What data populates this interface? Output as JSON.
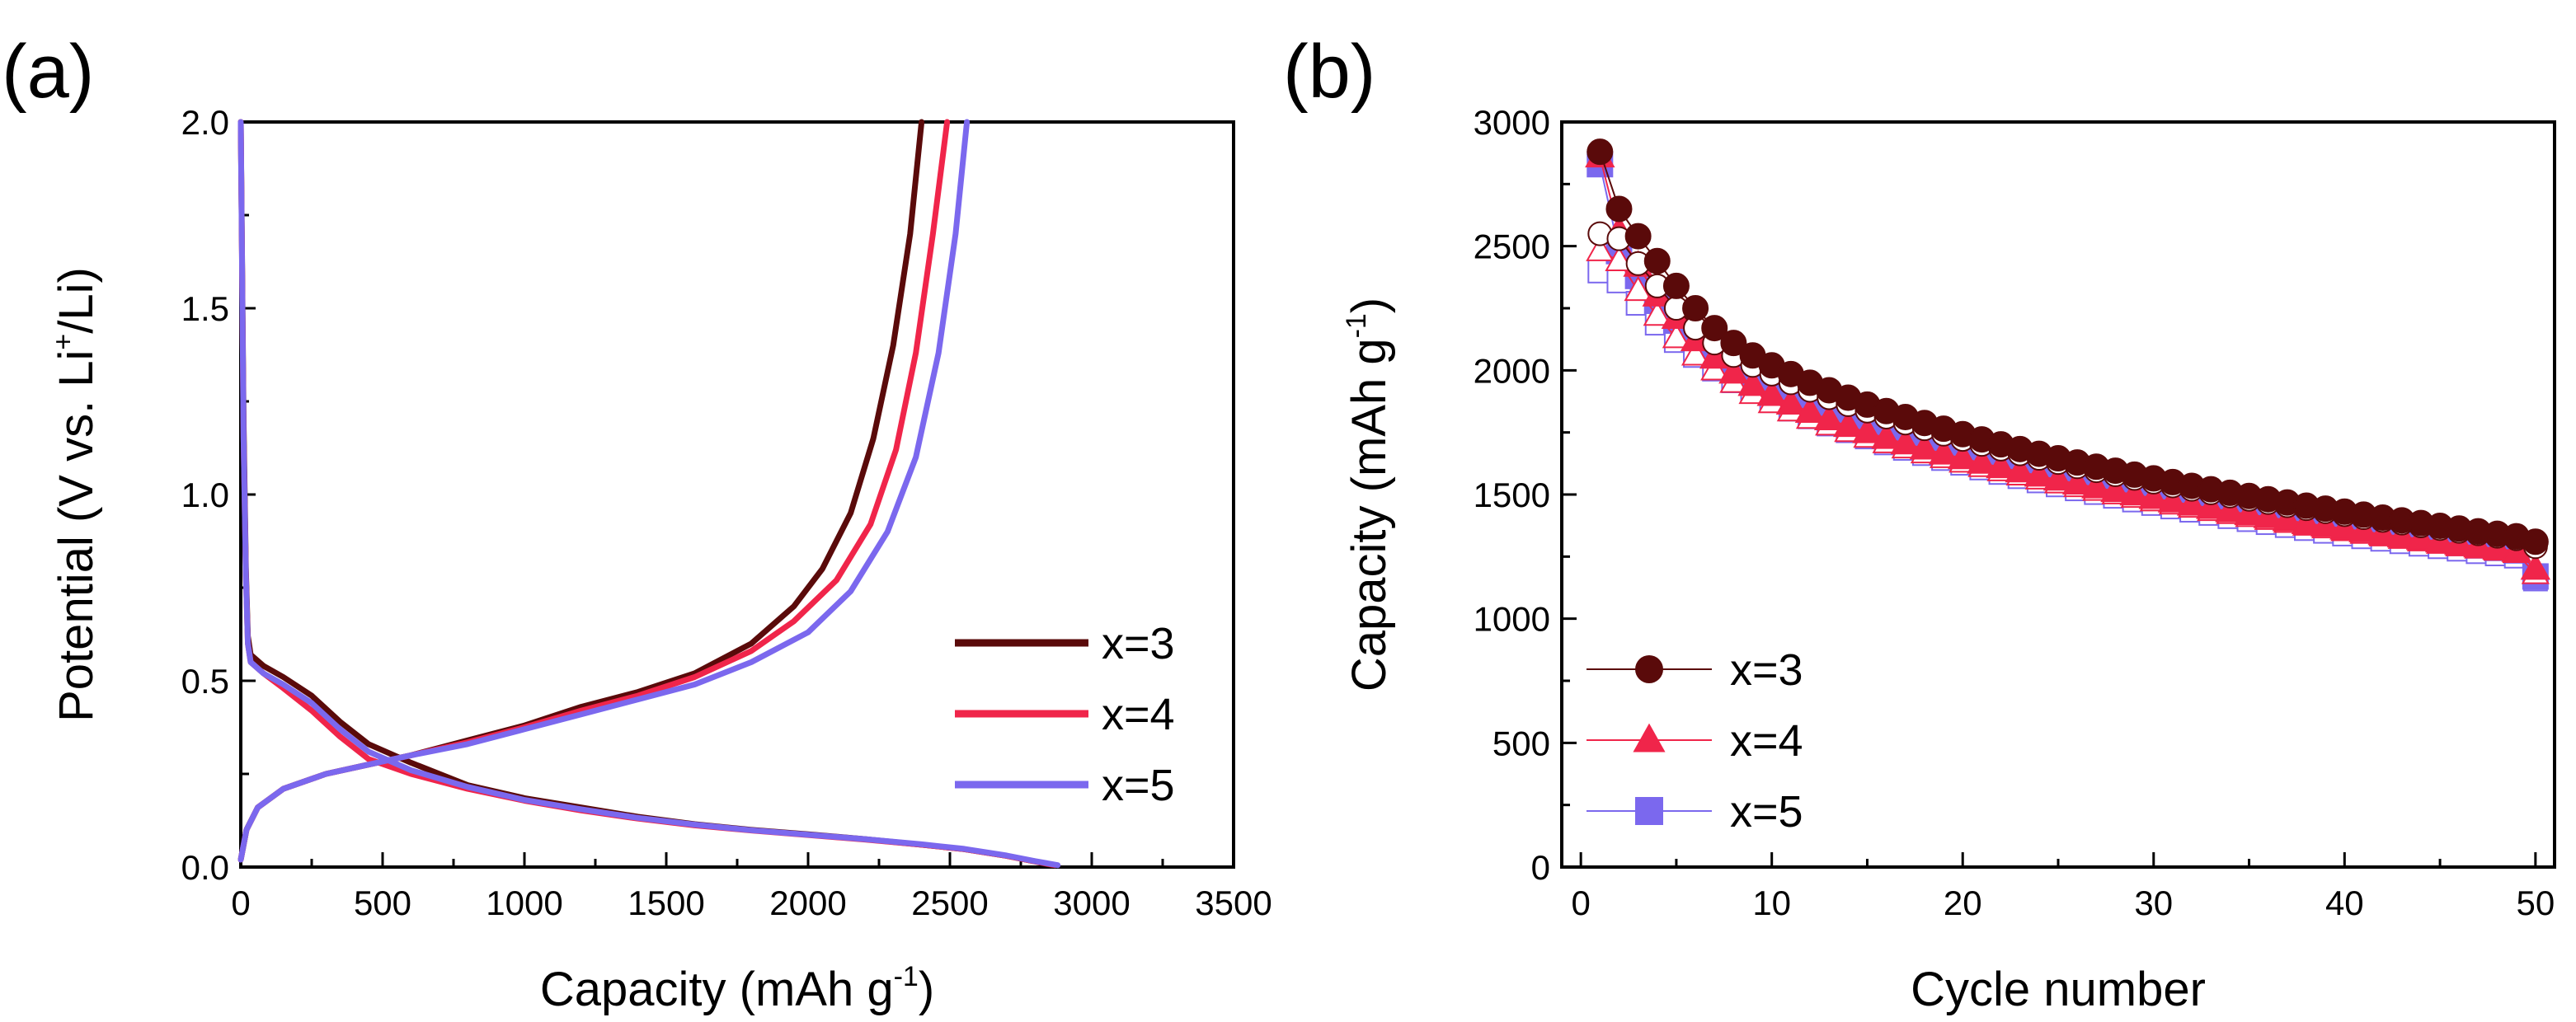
{
  "chart_data": [
    {
      "panel": "(a)",
      "type": "line",
      "title": "",
      "xlabel": {
        "main": "Capacity (mAh g",
        "sup": "-1",
        "tail": ")"
      },
      "ylabel": {
        "main": "Potential (V vs. Li",
        "sup": "+",
        "tail": "/Li)"
      },
      "xlim": [
        0,
        3500
      ],
      "ylim": [
        0,
        2.0
      ],
      "xticks": [
        0,
        500,
        1000,
        1500,
        2000,
        2500,
        3000,
        3500
      ],
      "xtick_labels": [
        "0",
        "500",
        "1000",
        "1500",
        "2000",
        "2500",
        "3000",
        "3500"
      ],
      "yticks": [
        0,
        0.5,
        1.0,
        1.5,
        2.0
      ],
      "ytick_labels": [
        "0.0",
        "0.5",
        "1.0",
        "1.5",
        "2.0"
      ],
      "legend": {
        "position": "right-middle",
        "entries": [
          "x=3",
          "x=4",
          "x=5"
        ]
      },
      "series": [
        {
          "name": "x=3",
          "color": "#5a0a0a",
          "discharge": [
            [
              0,
              2.0
            ],
            [
              10,
              1.2
            ],
            [
              18,
              0.8
            ],
            [
              25,
              0.62
            ],
            [
              35,
              0.57
            ],
            [
              80,
              0.54
            ],
            [
              150,
              0.51
            ],
            [
              250,
              0.46
            ],
            [
              350,
              0.39
            ],
            [
              450,
              0.33
            ],
            [
              600,
              0.28
            ],
            [
              800,
              0.22
            ],
            [
              1000,
              0.185
            ],
            [
              1200,
              0.16
            ],
            [
              1400,
              0.135
            ],
            [
              1600,
              0.115
            ],
            [
              1800,
              0.1
            ],
            [
              2000,
              0.088
            ],
            [
              2200,
              0.075
            ],
            [
              2400,
              0.06
            ],
            [
              2550,
              0.048
            ],
            [
              2700,
              0.03
            ],
            [
              2800,
              0.015
            ],
            [
              2860,
              0.005
            ]
          ],
          "charge": [
            [
              0,
              0.02
            ],
            [
              20,
              0.1
            ],
            [
              60,
              0.16
            ],
            [
              150,
              0.21
            ],
            [
              300,
              0.25
            ],
            [
              450,
              0.275
            ],
            [
              600,
              0.3
            ],
            [
              800,
              0.34
            ],
            [
              1000,
              0.38
            ],
            [
              1200,
              0.43
            ],
            [
              1400,
              0.47
            ],
            [
              1600,
              0.52
            ],
            [
              1800,
              0.6
            ],
            [
              1950,
              0.7
            ],
            [
              2050,
              0.8
            ],
            [
              2150,
              0.95
            ],
            [
              2230,
              1.15
            ],
            [
              2300,
              1.4
            ],
            [
              2360,
              1.7
            ],
            [
              2400,
              2.0
            ]
          ]
        },
        {
          "name": "x=4",
          "color": "#f0254a",
          "discharge": [
            [
              0,
              2.0
            ],
            [
              10,
              1.15
            ],
            [
              18,
              0.78
            ],
            [
              25,
              0.6
            ],
            [
              35,
              0.55
            ],
            [
              80,
              0.52
            ],
            [
              150,
              0.48
            ],
            [
              250,
              0.42
            ],
            [
              350,
              0.35
            ],
            [
              450,
              0.29
            ],
            [
              600,
              0.25
            ],
            [
              800,
              0.21
            ],
            [
              1000,
              0.178
            ],
            [
              1200,
              0.152
            ],
            [
              1400,
              0.13
            ],
            [
              1600,
              0.112
            ],
            [
              1800,
              0.098
            ],
            [
              2000,
              0.086
            ],
            [
              2200,
              0.074
            ],
            [
              2400,
              0.06
            ],
            [
              2550,
              0.048
            ],
            [
              2700,
              0.03
            ],
            [
              2800,
              0.015
            ],
            [
              2870,
              0.005
            ]
          ],
          "charge": [
            [
              0,
              0.02
            ],
            [
              20,
              0.1
            ],
            [
              60,
              0.16
            ],
            [
              150,
              0.21
            ],
            [
              300,
              0.25
            ],
            [
              450,
              0.275
            ],
            [
              600,
              0.3
            ],
            [
              800,
              0.335
            ],
            [
              1000,
              0.375
            ],
            [
              1200,
              0.42
            ],
            [
              1400,
              0.46
            ],
            [
              1600,
              0.51
            ],
            [
              1800,
              0.58
            ],
            [
              1950,
              0.66
            ],
            [
              2100,
              0.77
            ],
            [
              2220,
              0.92
            ],
            [
              2310,
              1.12
            ],
            [
              2380,
              1.38
            ],
            [
              2440,
              1.7
            ],
            [
              2490,
              2.0
            ]
          ]
        },
        {
          "name": "x=5",
          "color": "#7b68ee",
          "discharge": [
            [
              0,
              2.0
            ],
            [
              10,
              1.15
            ],
            [
              18,
              0.78
            ],
            [
              25,
              0.6
            ],
            [
              35,
              0.55
            ],
            [
              80,
              0.52
            ],
            [
              150,
              0.49
            ],
            [
              250,
              0.44
            ],
            [
              350,
              0.37
            ],
            [
              450,
              0.31
            ],
            [
              600,
              0.26
            ],
            [
              800,
              0.215
            ],
            [
              1000,
              0.18
            ],
            [
              1200,
              0.155
            ],
            [
              1400,
              0.132
            ],
            [
              1600,
              0.114
            ],
            [
              1800,
              0.099
            ],
            [
              2000,
              0.087
            ],
            [
              2200,
              0.075
            ],
            [
              2400,
              0.061
            ],
            [
              2550,
              0.049
            ],
            [
              2700,
              0.031
            ],
            [
              2800,
              0.016
            ],
            [
              2880,
              0.005
            ]
          ],
          "charge": [
            [
              0,
              0.02
            ],
            [
              20,
              0.1
            ],
            [
              60,
              0.16
            ],
            [
              150,
              0.21
            ],
            [
              300,
              0.25
            ],
            [
              450,
              0.275
            ],
            [
              600,
              0.3
            ],
            [
              800,
              0.33
            ],
            [
              1000,
              0.37
            ],
            [
              1200,
              0.41
            ],
            [
              1400,
              0.45
            ],
            [
              1600,
              0.49
            ],
            [
              1800,
              0.55
            ],
            [
              2000,
              0.63
            ],
            [
              2150,
              0.74
            ],
            [
              2280,
              0.9
            ],
            [
              2380,
              1.1
            ],
            [
              2460,
              1.38
            ],
            [
              2520,
              1.7
            ],
            [
              2560,
              2.0
            ]
          ]
        }
      ]
    },
    {
      "panel": "(b)",
      "type": "scatter",
      "title": "",
      "xlabel": {
        "main": "Cycle number",
        "sup": "",
        "tail": ""
      },
      "ylabel": {
        "main": "Capacity (mAh g",
        "sup": "-1",
        "tail": ")"
      },
      "xlim": [
        -1,
        51
      ],
      "ylim": [
        0,
        3000
      ],
      "xticks": [
        0,
        10,
        20,
        30,
        40,
        50
      ],
      "xtick_labels": [
        "0",
        "10",
        "20",
        "30",
        "40",
        "50"
      ],
      "yticks": [
        0,
        500,
        1000,
        1500,
        2000,
        2500,
        3000
      ],
      "ytick_labels": [
        "0",
        "500",
        "1000",
        "1500",
        "2000",
        "2500",
        "3000"
      ],
      "legend": {
        "position": "bottom-left",
        "entries": [
          "x=3",
          "x=4",
          "x=5"
        ]
      },
      "series": [
        {
          "name": "x=3",
          "color": "#5a0a0a",
          "marker": "circle",
          "discharge": [
            2880,
            2650,
            2540,
            2440,
            2340,
            2250,
            2170,
            2110,
            2060,
            2020,
            1985,
            1950,
            1920,
            1890,
            1862,
            1836,
            1812,
            1788,
            1765,
            1743,
            1722,
            1702,
            1683,
            1664,
            1646,
            1629,
            1612,
            1596,
            1580,
            1565,
            1550,
            1535,
            1521,
            1507,
            1494,
            1481,
            1468,
            1455,
            1443,
            1431,
            1419,
            1407,
            1396,
            1385,
            1374,
            1363,
            1352,
            1342,
            1332,
            1310
          ],
          "charge": [
            2550,
            2530,
            2430,
            2340,
            2250,
            2170,
            2110,
            2060,
            2020,
            1985,
            1950,
            1920,
            1890,
            1862,
            1836,
            1812,
            1788,
            1765,
            1743,
            1722,
            1702,
            1683,
            1664,
            1646,
            1629,
            1612,
            1596,
            1580,
            1565,
            1550,
            1535,
            1521,
            1507,
            1494,
            1481,
            1468,
            1455,
            1443,
            1431,
            1419,
            1407,
            1396,
            1385,
            1374,
            1363,
            1352,
            1342,
            1332,
            1322,
            1290
          ]
        },
        {
          "name": "x=4",
          "color": "#f0254a",
          "marker": "triangle",
          "discharge": [
            2860,
            2560,
            2420,
            2300,
            2210,
            2120,
            2050,
            1990,
            1940,
            1900,
            1865,
            1832,
            1802,
            1775,
            1750,
            1727,
            1705,
            1684,
            1664,
            1645,
            1627,
            1609,
            1592,
            1575,
            1559,
            1543,
            1528,
            1513,
            1499,
            1485,
            1471,
            1458,
            1445,
            1432,
            1420,
            1408,
            1396,
            1384,
            1373,
            1362,
            1351,
            1340,
            1330,
            1320,
            1310,
            1300,
            1290,
            1281,
            1272,
            1200
          ],
          "charge": [
            2480,
            2440,
            2320,
            2220,
            2130,
            2060,
            2000,
            1950,
            1905,
            1868,
            1835,
            1805,
            1778,
            1752,
            1729,
            1707,
            1686,
            1666,
            1647,
            1629,
            1611,
            1594,
            1577,
            1561,
            1545,
            1530,
            1515,
            1501,
            1487,
            1473,
            1460,
            1447,
            1434,
            1422,
            1410,
            1398,
            1386,
            1375,
            1364,
            1353,
            1342,
            1332,
            1322,
            1312,
            1302,
            1292,
            1283,
            1274,
            1265,
            1180
          ]
        },
        {
          "name": "x=5",
          "color": "#7b68ee",
          "marker": "square",
          "discharge": [
            2830,
            2480,
            2380,
            2280,
            2200,
            2130,
            2070,
            2020,
            1975,
            1935,
            1900,
            1868,
            1838,
            1810,
            1784,
            1760,
            1737,
            1715,
            1694,
            1674,
            1655,
            1636,
            1618,
            1600,
            1583,
            1566,
            1550,
            1534,
            1519,
            1504,
            1489,
            1475,
            1461,
            1447,
            1434,
            1421,
            1408,
            1396,
            1384,
            1372,
            1360,
            1349,
            1338,
            1327,
            1316,
            1305,
            1295,
            1285,
            1275,
            1170
          ],
          "charge": [
            2400,
            2360,
            2270,
            2190,
            2120,
            2060,
            2005,
            1958,
            1916,
            1878,
            1844,
            1813,
            1784,
            1757,
            1732,
            1708,
            1686,
            1665,
            1645,
            1626,
            1607,
            1589,
            1572,
            1555,
            1539,
            1523,
            1508,
            1493,
            1478,
            1464,
            1450,
            1437,
            1424,
            1411,
            1399,
            1387,
            1375,
            1363,
            1352,
            1341,
            1330,
            1320,
            1310,
            1300,
            1290,
            1280,
            1270,
            1261,
            1252,
            1160
          ]
        }
      ]
    }
  ]
}
